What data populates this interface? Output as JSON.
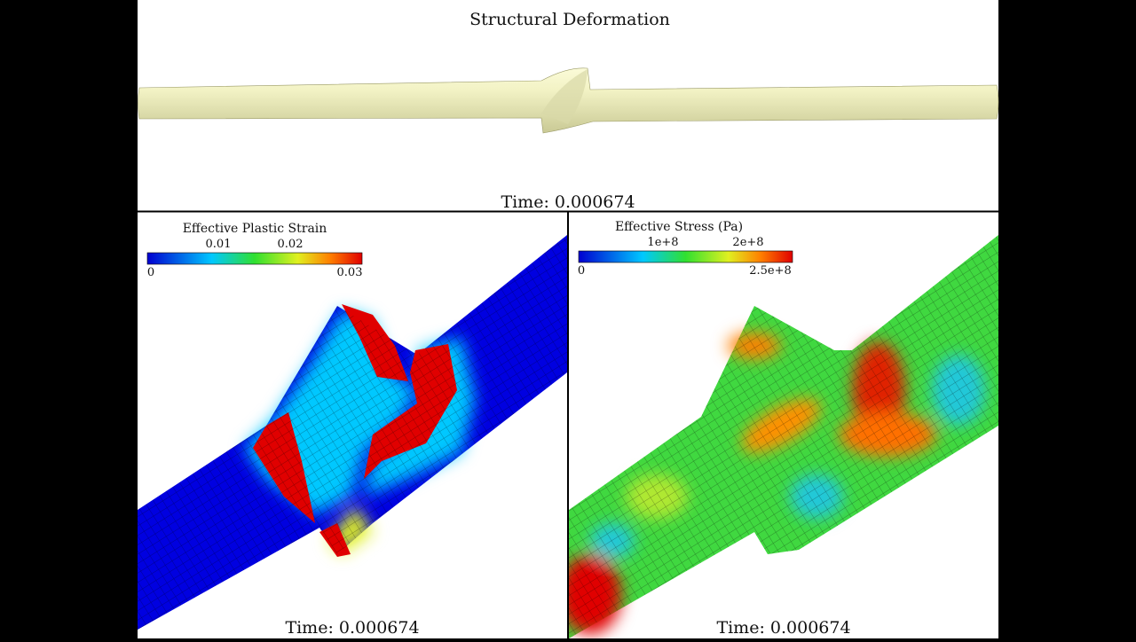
{
  "header": {
    "title": "Structural Deformation",
    "time": "Time: 0.000674"
  },
  "panels": [
    {
      "colorbar": {
        "title": "Effective Plastic Strain",
        "ticks_top": [
          "0.01",
          "0.02"
        ],
        "ticks_bottom": [
          "0",
          "0.03"
        ]
      },
      "time": "Time: 0.000674"
    },
    {
      "colorbar": {
        "title": "Effective Stress (Pa)",
        "ticks_top": [
          "1e+8",
          "2e+8"
        ],
        "ticks_bottom": [
          "0",
          "2.5e+8"
        ]
      },
      "time": "Time: 0.000674"
    }
  ]
}
